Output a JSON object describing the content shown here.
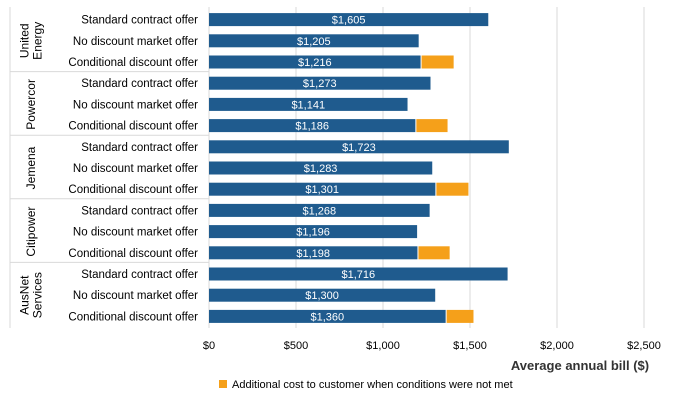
{
  "chart_data": {
    "type": "bar",
    "orientation": "horizontal",
    "stacked": true,
    "xlabel": "Average annual bill  ($)",
    "xlim": [
      0,
      2500
    ],
    "x_ticks": [
      0,
      500,
      1000,
      1500,
      2000,
      2500
    ],
    "x_tick_labels": [
      "$0",
      "$500",
      "$1,000",
      "$1,500",
      "$2,000",
      "$2,500"
    ],
    "grid": "vertical",
    "legend_position": "bottom",
    "colors": {
      "base": "#1f5b8e",
      "additional": "#f5a01a"
    },
    "series": [
      {
        "name": "",
        "color": "#1f5b8e"
      },
      {
        "name": "Additional cost to customer when conditions were not met",
        "color": "#f5a01a"
      }
    ],
    "groups": [
      {
        "name": "United Energy",
        "name_lines": [
          "United",
          "Energy"
        ],
        "bars": [
          {
            "label": "Standard contract offer",
            "value": 1605,
            "value_label": "$1,605",
            "additional": 0
          },
          {
            "label": "No discount market offer",
            "value": 1205,
            "value_label": "$1,205",
            "additional": 0
          },
          {
            "label": "Conditional discount offer",
            "value": 1216,
            "value_label": "$1,216",
            "additional": 190
          }
        ]
      },
      {
        "name": "Powercor",
        "name_lines": [
          "Powercor"
        ],
        "bars": [
          {
            "label": "Standard contract offer",
            "value": 1273,
            "value_label": "$1,273",
            "additional": 0
          },
          {
            "label": "No discount market offer",
            "value": 1141,
            "value_label": "$1,141",
            "additional": 0
          },
          {
            "label": "Conditional discount offer",
            "value": 1186,
            "value_label": "$1,186",
            "additional": 185
          }
        ]
      },
      {
        "name": "Jemena",
        "name_lines": [
          "Jemena"
        ],
        "bars": [
          {
            "label": "Standard contract offer",
            "value": 1723,
            "value_label": "$1,723",
            "additional": 0
          },
          {
            "label": "No discount market offer",
            "value": 1283,
            "value_label": "$1,283",
            "additional": 0
          },
          {
            "label": "Conditional discount offer",
            "value": 1301,
            "value_label": "$1,301",
            "additional": 190
          }
        ]
      },
      {
        "name": "Citipower",
        "name_lines": [
          "Citipower"
        ],
        "bars": [
          {
            "label": "Standard contract offer",
            "value": 1268,
            "value_label": "$1,268",
            "additional": 0
          },
          {
            "label": "No discount market offer",
            "value": 1196,
            "value_label": "$1,196",
            "additional": 0
          },
          {
            "label": "Conditional discount offer",
            "value": 1198,
            "value_label": "$1,198",
            "additional": 185
          }
        ]
      },
      {
        "name": "AusNet Services",
        "name_lines": [
          "AusNet",
          "Services"
        ],
        "bars": [
          {
            "label": "Standard contract offer",
            "value": 1716,
            "value_label": "$1,716",
            "additional": 0
          },
          {
            "label": "No discount market offer",
            "value": 1300,
            "value_label": "$1,300",
            "additional": 0
          },
          {
            "label": "Conditional discount offer",
            "value": 1360,
            "value_label": "$1,360",
            "additional": 160
          }
        ]
      }
    ]
  }
}
